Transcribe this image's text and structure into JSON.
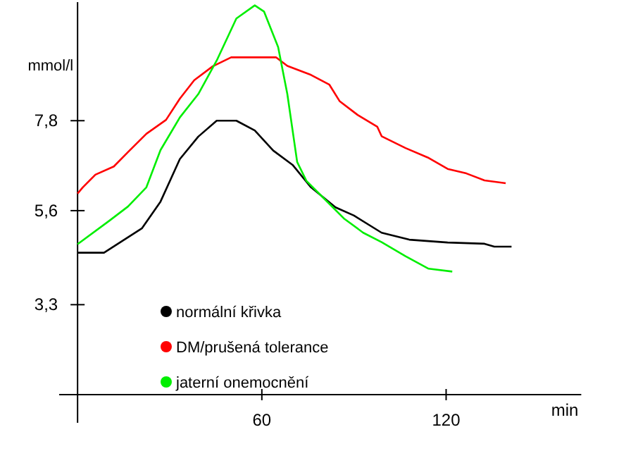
{
  "chart_data": {
    "type": "line",
    "xlabel": "min",
    "ylabel": "mmol/l",
    "xlim": [
      -6,
      164
    ],
    "ylim": [
      1.1,
      10.7
    ],
    "xticks": [
      60,
      120
    ],
    "yticks": [
      {
        "value": 3.3,
        "label": "3,3"
      },
      {
        "value": 5.6,
        "label": "5,6"
      },
      {
        "value": 7.8,
        "label": "7,8"
      }
    ],
    "legend": "bottom left",
    "grid": false,
    "series": [
      {
        "name": "normální křivka",
        "color": "#000000",
        "x": [
          0,
          8.6,
          21,
          27,
          33.3,
          39.3,
          45.3,
          51.7,
          57.7,
          63.7,
          70,
          76,
          84,
          90,
          99,
          108,
          120.5,
          132.5,
          135.7,
          141.3
        ],
        "values": [
          4.57,
          4.57,
          5.17,
          5.82,
          6.86,
          7.41,
          7.8,
          7.8,
          7.56,
          7.07,
          6.72,
          6.17,
          5.68,
          5.48,
          5.06,
          4.89,
          4.82,
          4.79,
          4.72,
          4.72
        ]
      },
      {
        "name": "DM/prušená tolerance",
        "color": "#ff0000",
        "x": [
          0,
          1.7,
          5.8,
          11.8,
          16.4,
          22.4,
          28.8,
          33.3,
          38,
          44,
          50,
          64.6,
          68.3,
          76,
          82,
          85.3,
          91.2,
          97.6,
          99,
          106.8,
          114,
          120.5,
          126.6,
          132.5,
          139.4
        ],
        "values": [
          6.02,
          6.17,
          6.48,
          6.68,
          7.03,
          7.48,
          7.82,
          8.34,
          8.79,
          9.13,
          9.35,
          9.35,
          9.14,
          8.92,
          8.68,
          8.28,
          7.94,
          7.65,
          7.42,
          7.13,
          6.9,
          6.62,
          6.51,
          6.34,
          6.27
        ]
      },
      {
        "name": "jaterní onemocnění",
        "color": "#00ee00",
        "x": [
          0,
          10.3,
          16.4,
          22.4,
          27,
          33.3,
          39.3,
          45.3,
          51.7,
          57.7,
          60.7,
          65.3,
          68.3,
          71.5,
          74.5,
          80.6,
          86.7,
          93,
          99,
          106.7,
          114.3,
          122
        ],
        "values": [
          4.78,
          5.35,
          5.7,
          6.17,
          7.08,
          7.88,
          8.45,
          9.27,
          10.3,
          10.62,
          10.47,
          9.6,
          8.45,
          6.79,
          6.33,
          5.87,
          5.41,
          5.06,
          4.83,
          4.49,
          4.18,
          4.11
        ]
      }
    ]
  }
}
